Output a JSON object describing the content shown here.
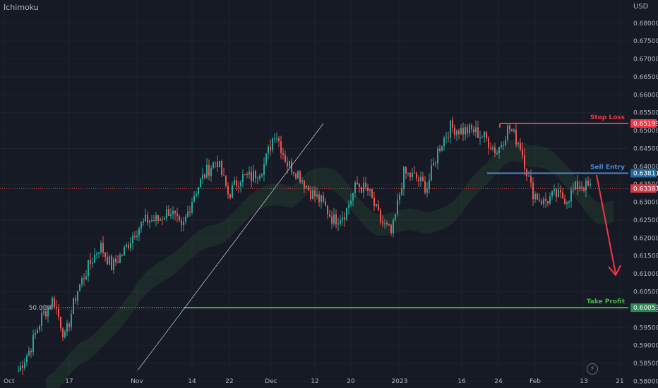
{
  "header": {
    "indicator": "Ichimoku",
    "currency": "USD",
    "flash_icon": "lightning-icon"
  },
  "colors": {
    "background": "#161a25",
    "up": "#26a69a",
    "down": "#ef5350",
    "grid": "#1e222d",
    "stop": "#f23645",
    "entry": "#2962ff",
    "profit": "#4caf50",
    "arrow": "#f23645"
  },
  "chart_data": {
    "type": "candlestick",
    "instrument_currency": "USD",
    "indicator": "Ichimoku",
    "yticks": [
      "0.58000",
      "0.58500",
      "0.59000",
      "0.59500",
      "0.60000",
      "0.60500",
      "0.61000",
      "0.61500",
      "0.62000",
      "0.62500",
      "0.63000",
      "0.63500",
      "0.64000",
      "0.64500",
      "0.65000",
      "0.65500",
      "0.66000",
      "0.66500",
      "0.67000",
      "0.67500",
      "0.68000"
    ],
    "ylim": [
      0.5785,
      0.6845
    ],
    "xticks": [
      "Oct",
      "17",
      "Nov",
      "14",
      "22",
      "Dec",
      "12",
      "20",
      "2023",
      "16",
      "24",
      "Feb",
      "13",
      "21"
    ],
    "levels": [
      {
        "name": "Stop Loss",
        "price_label": "0.65199",
        "value": 0.65199
      },
      {
        "name": "Sell Entry",
        "price_label": "0.63811",
        "value": 0.63811
      },
      {
        "name": "Take Profit",
        "price_label": "0.60053",
        "value": 0.60053
      }
    ],
    "current_price_label": "0.63381",
    "current_price": 0.63381,
    "fib_label": "50.00%",
    "close_path": [
      [
        0.583,
        0.581
      ],
      [
        0.589,
        0.586
      ],
      [
        0.598,
        0.593
      ],
      [
        0.603,
        0.6
      ],
      [
        0.592,
        0.589
      ],
      [
        0.605,
        0.603
      ],
      [
        0.612,
        0.61
      ],
      [
        0.618,
        0.616
      ],
      [
        0.612,
        0.61
      ],
      [
        0.616,
        0.614
      ],
      [
        0.622,
        0.62
      ],
      [
        0.625,
        0.623
      ],
      [
        0.625,
        0.623
      ],
      [
        0.628,
        0.626
      ],
      [
        0.622,
        0.62
      ],
      [
        0.632,
        0.63
      ],
      [
        0.638,
        0.636
      ],
      [
        0.642,
        0.64
      ],
      [
        0.632,
        0.63
      ],
      [
        0.637,
        0.635
      ],
      [
        0.637,
        0.635
      ],
      [
        0.64,
        0.638
      ],
      [
        0.65,
        0.648
      ],
      [
        0.641,
        0.639
      ],
      [
        0.638,
        0.636
      ],
      [
        0.633,
        0.631
      ],
      [
        0.63,
        0.628
      ],
      [
        0.625,
        0.623
      ],
      [
        0.627,
        0.625
      ],
      [
        0.635,
        0.633
      ],
      [
        0.633,
        0.631
      ],
      [
        0.625,
        0.623
      ],
      [
        0.621,
        0.619
      ],
      [
        0.638,
        0.636
      ],
      [
        0.637,
        0.635
      ],
      [
        0.634,
        0.632
      ],
      [
        0.645,
        0.643
      ],
      [
        0.651,
        0.649
      ],
      [
        0.65,
        0.648
      ],
      [
        0.65,
        0.648
      ],
      [
        0.648,
        0.646
      ],
      [
        0.644,
        0.642
      ],
      [
        0.651,
        0.649
      ],
      [
        0.646,
        0.644
      ],
      [
        0.633,
        0.631
      ],
      [
        0.63,
        0.628
      ],
      [
        0.632,
        0.63
      ],
      [
        0.631,
        0.629
      ],
      [
        0.635,
        0.633
      ],
      [
        0.634,
        0.632
      ]
    ]
  }
}
